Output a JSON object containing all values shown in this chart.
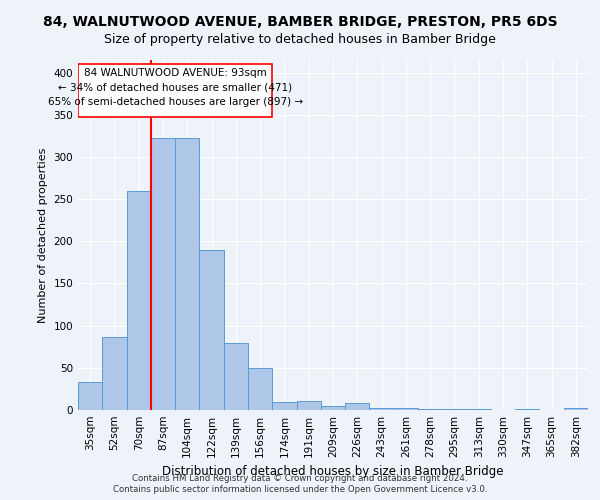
{
  "title": "84, WALNUTWOOD AVENUE, BAMBER BRIDGE, PRESTON, PR5 6DS",
  "subtitle": "Size of property relative to detached houses in Bamber Bridge",
  "xlabel": "Distribution of detached houses by size in Bamber Bridge",
  "ylabel": "Number of detached properties",
  "categories": [
    "35sqm",
    "52sqm",
    "70sqm",
    "87sqm",
    "104sqm",
    "122sqm",
    "139sqm",
    "156sqm",
    "174sqm",
    "191sqm",
    "209sqm",
    "226sqm",
    "243sqm",
    "261sqm",
    "278sqm",
    "295sqm",
    "313sqm",
    "330sqm",
    "347sqm",
    "365sqm",
    "382sqm"
  ],
  "values": [
    33,
    87,
    260,
    322,
    322,
    190,
    80,
    50,
    10,
    11,
    5,
    8,
    2,
    2,
    1,
    1,
    1,
    0,
    1,
    0,
    2
  ],
  "bar_color": "#aec6e8",
  "bar_edge_color": "#5b9bd5",
  "annotation_text1": "84 WALNUTWOOD AVENUE: 93sqm",
  "annotation_text2": "← 34% of detached houses are smaller (471)",
  "annotation_text3": "65% of semi-detached houses are larger (897) →",
  "footer1": "Contains HM Land Registry data © Crown copyright and database right 2024.",
  "footer2": "Contains public sector information licensed under the Open Government Licence v3.0.",
  "ylim": [
    0,
    415
  ],
  "background_color": "#eef2f9",
  "grid_color": "#ffffff",
  "title_fontsize": 10,
  "subtitle_fontsize": 9,
  "red_line_x": 2.5
}
